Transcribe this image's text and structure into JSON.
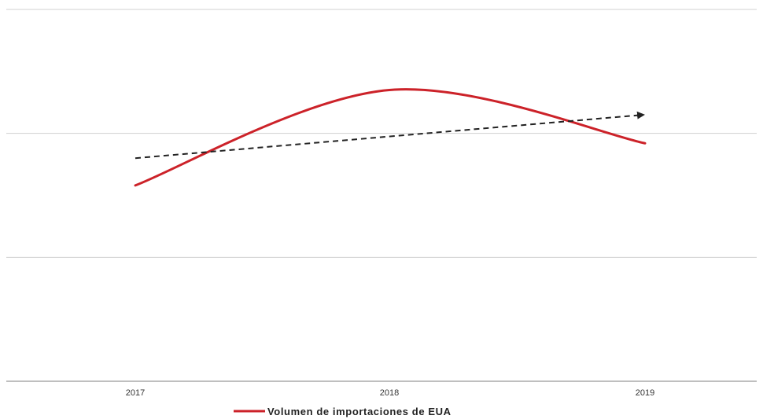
{
  "chart_data": {
    "type": "line",
    "x": [
      "2017",
      "2018",
      "2019"
    ],
    "ylim": [
      0,
      3
    ],
    "grid": true,
    "legend_position": "bottom-center",
    "series": [
      {
        "name": "Volumen de importaciones de EUA",
        "values": [
          1.58,
          2.35,
          1.92
        ],
        "color": "#cc2229",
        "style": "solid-smooth"
      },
      {
        "name": "",
        "values": [
          1.8,
          1.98,
          2.15
        ],
        "color": "#222222",
        "style": "dashed-arrow"
      }
    ]
  }
}
